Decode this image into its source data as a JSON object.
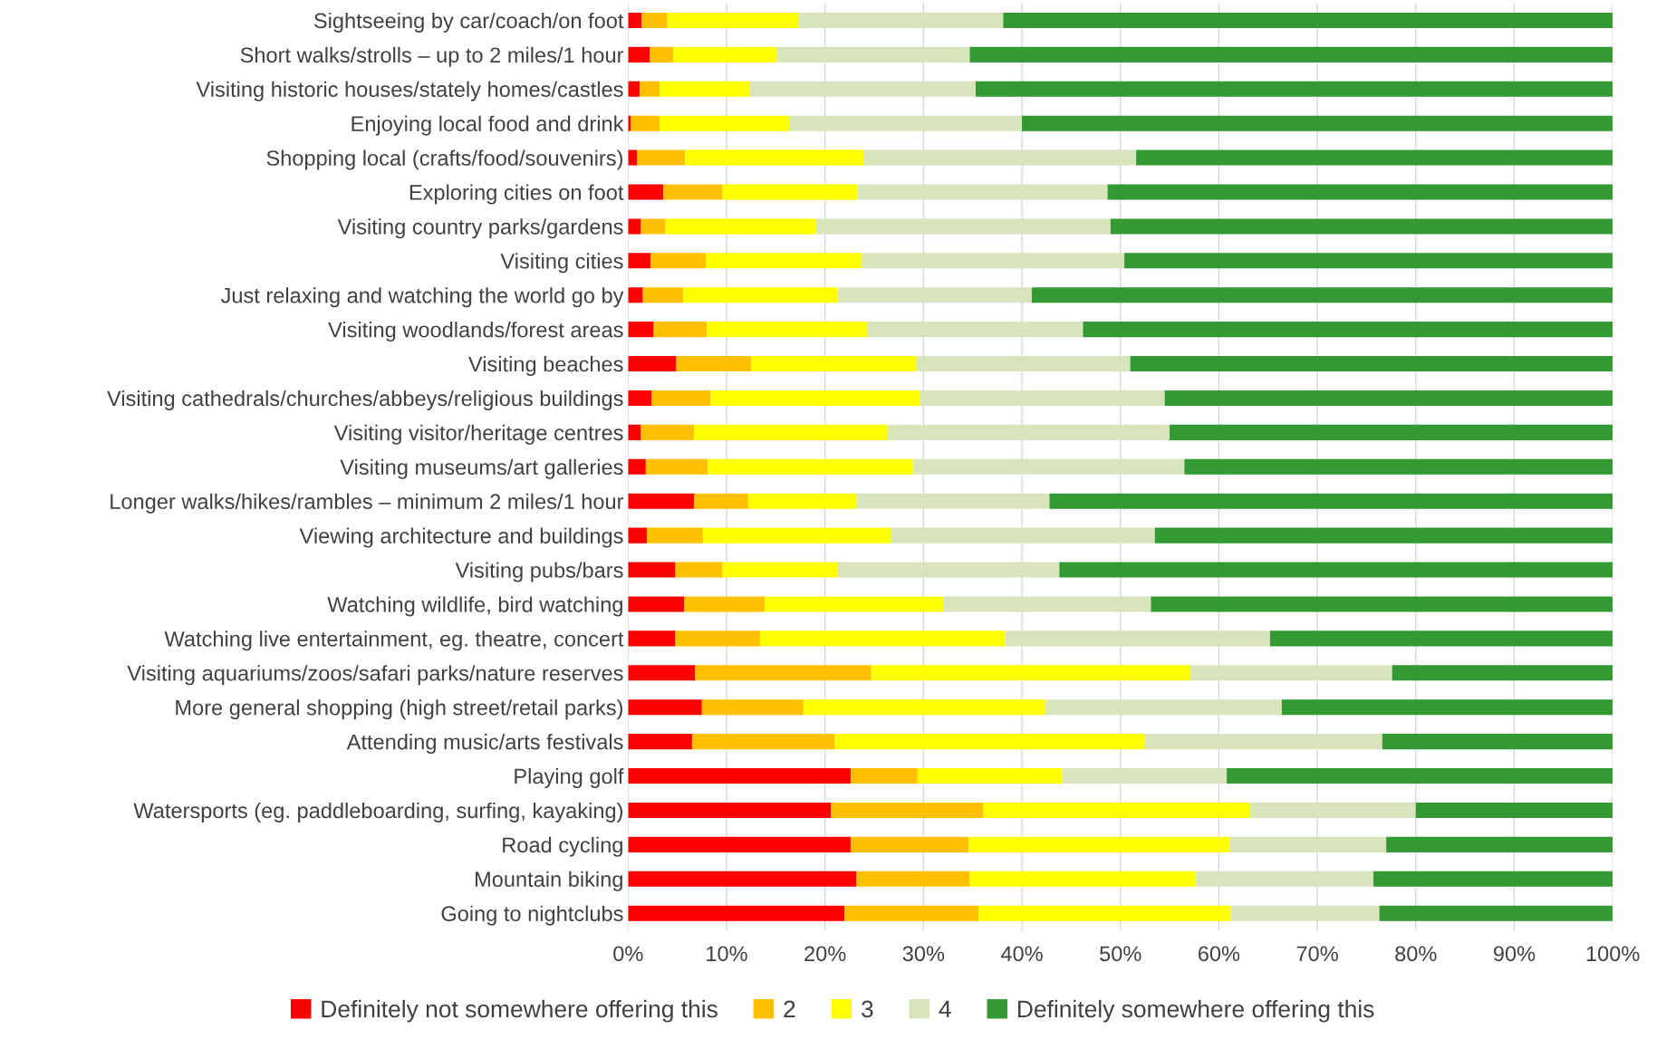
{
  "chart_data": {
    "type": "bar",
    "orientation": "horizontal",
    "stacked": true,
    "categories": [
      "Sightseeing by car/coach/on foot",
      "Short walks/strolls – up to 2 miles/1 hour",
      "Visiting historic houses/stately homes/castles",
      "Enjoying local food and drink",
      "Shopping local (crafts/food/souvenirs)",
      "Exploring cities on foot",
      "Visiting country parks/gardens",
      "Visiting cities",
      "Just relaxing and watching the world go by",
      "Visiting woodlands/forest areas",
      "Visiting beaches",
      "Visiting cathedrals/churches/abbeys/religious buildings",
      "Visiting visitor/heritage centres",
      "Visiting museums/art galleries",
      "Longer walks/hikes/rambles – minimum 2 miles/1 hour",
      "Viewing architecture and buildings",
      "Visiting pubs/bars",
      "Watching wildlife, bird watching",
      "Watching live entertainment, eg. theatre, concert",
      "Visiting aquariums/zoos/safari parks/nature reserves",
      "More general shopping (high street/retail parks)",
      "Attending music/arts festivals",
      "Playing golf",
      "Watersports (eg. paddleboarding, surfing, kayaking)",
      "Road cycling",
      "Mountain biking",
      "Going to nightclubs"
    ],
    "series": [
      {
        "name": "Definitely not somewhere offering this",
        "color": "#ff0000",
        "values": [
          1.4,
          2.2,
          1.2,
          0.3,
          0.9,
          3.6,
          1.3,
          2.3,
          1.5,
          2.6,
          4.9,
          2.4,
          1.3,
          1.8,
          6.7,
          1.9,
          4.8,
          5.7,
          4.8,
          6.8,
          7.5,
          6.5,
          22.6,
          20.6,
          22.6,
          23.2,
          22.0
        ]
      },
      {
        "name": "2",
        "color": "#ffc000",
        "values": [
          2.6,
          2.4,
          2.0,
          2.9,
          4.9,
          6.0,
          2.5,
          5.6,
          4.1,
          5.4,
          7.6,
          6.0,
          5.4,
          6.3,
          5.5,
          5.7,
          4.8,
          8.2,
          8.6,
          17.9,
          10.3,
          14.5,
          6.8,
          15.5,
          12.0,
          11.5,
          13.6
        ]
      },
      {
        "name": "3",
        "color": "#ffff00",
        "values": [
          13.3,
          10.5,
          9.2,
          13.2,
          18.1,
          13.7,
          15.3,
          15.8,
          15.7,
          16.3,
          16.8,
          21.3,
          19.6,
          20.9,
          11.0,
          19.1,
          11.7,
          18.1,
          24.9,
          32.4,
          24.6,
          31.5,
          14.7,
          27.0,
          26.5,
          23.0,
          25.6
        ]
      },
      {
        "name": "4",
        "color": "#d8e4bc",
        "values": [
          20.8,
          19.6,
          22.9,
          23.6,
          27.7,
          25.4,
          29.9,
          26.7,
          19.7,
          21.9,
          21.7,
          24.8,
          28.7,
          27.5,
          19.6,
          26.8,
          22.5,
          21.1,
          26.9,
          20.5,
          24.0,
          24.1,
          16.7,
          16.9,
          15.9,
          18.0,
          15.1
        ]
      },
      {
        "name": "Definitely somewhere offering this",
        "color": "#339933",
        "values": [
          61.9,
          65.3,
          64.7,
          60.0,
          48.4,
          51.3,
          51.0,
          49.6,
          59.0,
          53.8,
          49.0,
          45.5,
          45.0,
          43.5,
          57.2,
          46.5,
          56.2,
          46.9,
          34.8,
          22.4,
          33.6,
          23.4,
          39.2,
          20.0,
          23.0,
          24.3,
          23.7
        ]
      }
    ],
    "xlim": [
      0,
      100
    ],
    "xticks": [
      {
        "value": 0,
        "label": "0%"
      },
      {
        "value": 10,
        "label": "10%"
      },
      {
        "value": 20,
        "label": "20%"
      },
      {
        "value": 30,
        "label": "30%"
      },
      {
        "value": 40,
        "label": "40%"
      },
      {
        "value": 50,
        "label": "50%"
      },
      {
        "value": 60,
        "label": "60%"
      },
      {
        "value": 70,
        "label": "70%"
      },
      {
        "value": 80,
        "label": "80%"
      },
      {
        "value": 90,
        "label": "90%"
      },
      {
        "value": 100,
        "label": "100%"
      }
    ],
    "grid": "x",
    "legend": "bottom"
  }
}
